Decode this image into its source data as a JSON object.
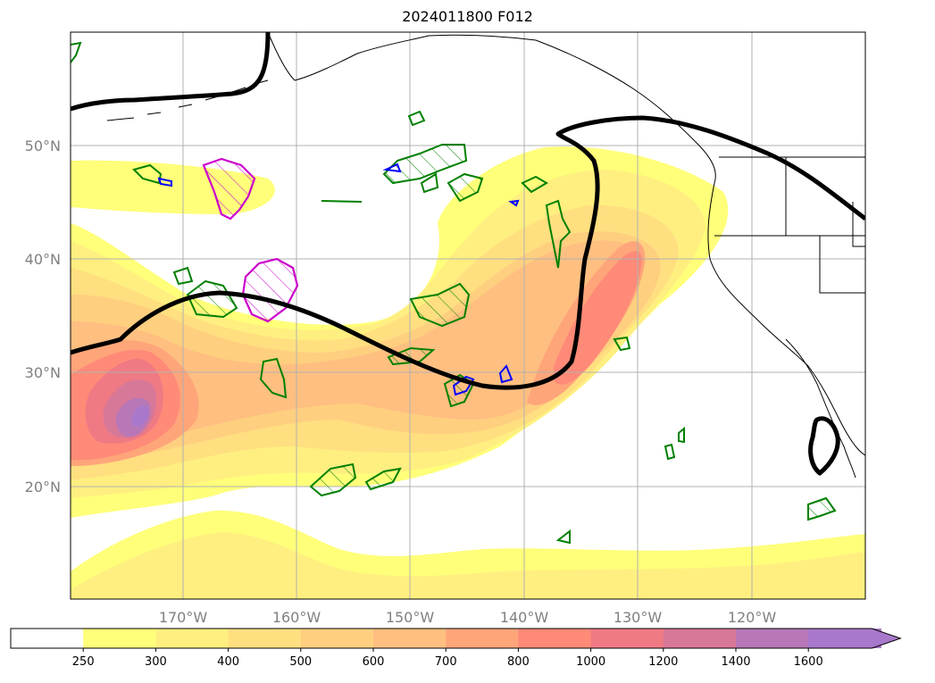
{
  "title": "2024011800 F012",
  "map": {
    "lat_labels": [
      "50°N",
      "40°N",
      "30°N",
      "20°N"
    ],
    "lon_labels": [
      "170°W",
      "160°W",
      "150°W",
      "140°W",
      "130°W",
      "120°W"
    ]
  },
  "colorbar": {
    "levels": [
      "250",
      "300",
      "400",
      "500",
      "600",
      "700",
      "800",
      "1000",
      "1200",
      "1400",
      "1600"
    ],
    "colors": [
      "#ffffff",
      "#ffff7a",
      "#ffef80",
      "#ffdf80",
      "#ffcf80",
      "#ffbf80",
      "#ffa57a",
      "#ff8a78",
      "#ef7a84",
      "#d87898",
      "#b878b8",
      "#a878cc"
    ],
    "extend": "max"
  },
  "colors": {
    "contour_main": "#000000",
    "green_contour": "#008000",
    "blue_contour": "#0000ff",
    "magenta_contour": "#cc00cc",
    "grid": "#b0b0b0",
    "coast": "#000000"
  }
}
